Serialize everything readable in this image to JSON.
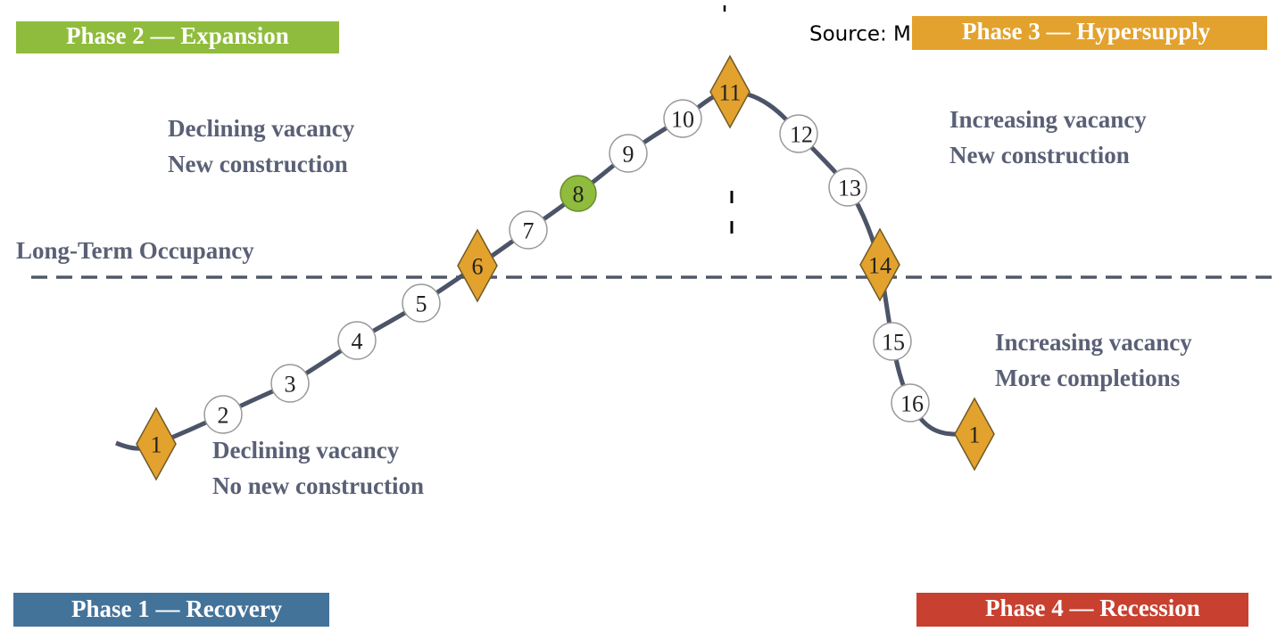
{
  "phases": [
    {
      "label": "Phase 1 — Recovery",
      "description": [
        "Declining vacancy",
        "No new construction"
      ]
    },
    {
      "label": "Phase 2 — Expansion",
      "description": [
        "Declining vacancy",
        "New construction"
      ]
    },
    {
      "label": "Phase 3 — Hypersupply",
      "description": [
        "Increasing vacancy",
        "New construction"
      ]
    },
    {
      "label": "Phase 4 — Recession",
      "description": [
        "Increasing vacancy",
        "More completions"
      ]
    }
  ],
  "baseline_label": "Long-Term Occupancy",
  "source": "Source: M",
  "nodes": [
    "1",
    "2",
    "3",
    "4",
    "5",
    "6",
    "7",
    "8",
    "9",
    "10",
    "11",
    "12",
    "13",
    "14",
    "15",
    "16",
    "1"
  ]
}
